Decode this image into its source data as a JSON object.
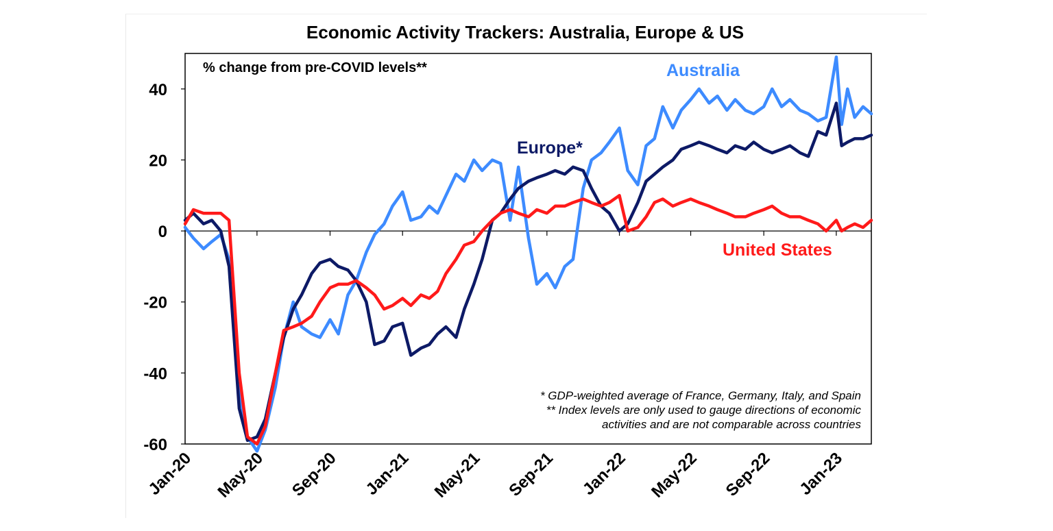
{
  "chart_data": {
    "type": "line",
    "title": "Economic Activity Trackers: Australia, Europe & US",
    "unit_label": "% change from pre-COVID levels**",
    "x_tick_labels": [
      "Jan-20",
      "May-20",
      "Sep-20",
      "Jan-21",
      "May-21",
      "Sep-21",
      "Jan-22",
      "May-22",
      "Sep-22",
      "Jan-23"
    ],
    "x_range": [
      "2020-01",
      "2023-03"
    ],
    "ylim": [
      -60,
      50
    ],
    "y_ticks": [
      -60,
      -40,
      -20,
      0,
      20,
      40
    ],
    "grid": false,
    "zero_line": true,
    "notes": [
      "* GDP-weighted average of France, Germany, Italy, and Spain",
      "** Index levels are only used to gauge directions of economic",
      "activities and are not comparable across countries"
    ],
    "series": [
      {
        "name": "Australia",
        "color": "#3d8bff",
        "points": [
          [
            "2020-01-01",
            1
          ],
          [
            "2020-01-15",
            -2
          ],
          [
            "2020-02-01",
            -5
          ],
          [
            "2020-02-15",
            -3
          ],
          [
            "2020-03-01",
            -1
          ],
          [
            "2020-03-15",
            -8
          ],
          [
            "2020-04-01",
            -45
          ],
          [
            "2020-04-15",
            -58
          ],
          [
            "2020-05-01",
            -62
          ],
          [
            "2020-05-15",
            -56
          ],
          [
            "2020-06-01",
            -44
          ],
          [
            "2020-06-15",
            -30
          ],
          [
            "2020-07-01",
            -20
          ],
          [
            "2020-07-15",
            -27
          ],
          [
            "2020-08-01",
            -29
          ],
          [
            "2020-08-15",
            -30
          ],
          [
            "2020-09-01",
            -25
          ],
          [
            "2020-09-15",
            -29
          ],
          [
            "2020-10-01",
            -18
          ],
          [
            "2020-10-15",
            -14
          ],
          [
            "2020-11-01",
            -6
          ],
          [
            "2020-11-15",
            -1
          ],
          [
            "2020-12-01",
            2
          ],
          [
            "2020-12-15",
            7
          ],
          [
            "2021-01-01",
            11
          ],
          [
            "2021-01-15",
            3
          ],
          [
            "2021-02-01",
            4
          ],
          [
            "2021-02-15",
            7
          ],
          [
            "2021-03-01",
            5
          ],
          [
            "2021-03-15",
            10
          ],
          [
            "2021-04-01",
            16
          ],
          [
            "2021-04-15",
            14
          ],
          [
            "2021-05-01",
            20
          ],
          [
            "2021-05-15",
            17
          ],
          [
            "2021-06-01",
            20
          ],
          [
            "2021-06-15",
            19
          ],
          [
            "2021-07-01",
            3
          ],
          [
            "2021-07-15",
            18
          ],
          [
            "2021-08-01",
            -2
          ],
          [
            "2021-08-15",
            -15
          ],
          [
            "2021-09-01",
            -12
          ],
          [
            "2021-09-15",
            -16
          ],
          [
            "2021-10-01",
            -10
          ],
          [
            "2021-10-15",
            -8
          ],
          [
            "2021-11-01",
            12
          ],
          [
            "2021-11-15",
            20
          ],
          [
            "2021-12-01",
            22
          ],
          [
            "2021-12-15",
            25
          ],
          [
            "2022-01-01",
            29
          ],
          [
            "2022-01-15",
            17
          ],
          [
            "2022-02-01",
            13
          ],
          [
            "2022-02-15",
            24
          ],
          [
            "2022-03-01",
            26
          ],
          [
            "2022-03-15",
            35
          ],
          [
            "2022-04-01",
            29
          ],
          [
            "2022-04-15",
            34
          ],
          [
            "2022-05-01",
            37
          ],
          [
            "2022-05-15",
            40
          ],
          [
            "2022-06-01",
            36
          ],
          [
            "2022-06-15",
            38
          ],
          [
            "2022-07-01",
            34
          ],
          [
            "2022-07-15",
            37
          ],
          [
            "2022-08-01",
            34
          ],
          [
            "2022-08-15",
            33
          ],
          [
            "2022-09-01",
            35
          ],
          [
            "2022-09-15",
            40
          ],
          [
            "2022-10-01",
            35
          ],
          [
            "2022-10-15",
            37
          ],
          [
            "2022-11-01",
            34
          ],
          [
            "2022-11-15",
            33
          ],
          [
            "2022-12-01",
            31
          ],
          [
            "2022-12-15",
            32
          ],
          [
            "2023-01-01",
            49
          ],
          [
            "2023-01-10",
            30
          ],
          [
            "2023-01-20",
            40
          ],
          [
            "2023-02-01",
            32
          ],
          [
            "2023-02-15",
            35
          ],
          [
            "2023-03-01",
            33
          ]
        ]
      },
      {
        "name": "Europe*",
        "color": "#0d1a66",
        "points": [
          [
            "2020-01-01",
            3
          ],
          [
            "2020-01-15",
            5
          ],
          [
            "2020-02-01",
            2
          ],
          [
            "2020-02-15",
            3
          ],
          [
            "2020-03-01",
            0
          ],
          [
            "2020-03-15",
            -10
          ],
          [
            "2020-04-01",
            -50
          ],
          [
            "2020-04-15",
            -59
          ],
          [
            "2020-05-01",
            -58
          ],
          [
            "2020-05-15",
            -53
          ],
          [
            "2020-06-01",
            -40
          ],
          [
            "2020-06-15",
            -30
          ],
          [
            "2020-07-01",
            -22
          ],
          [
            "2020-07-15",
            -18
          ],
          [
            "2020-08-01",
            -12
          ],
          [
            "2020-08-15",
            -9
          ],
          [
            "2020-09-01",
            -8
          ],
          [
            "2020-09-15",
            -10
          ],
          [
            "2020-10-01",
            -11
          ],
          [
            "2020-10-15",
            -14
          ],
          [
            "2020-11-01",
            -20
          ],
          [
            "2020-11-15",
            -32
          ],
          [
            "2020-12-01",
            -31
          ],
          [
            "2020-12-15",
            -27
          ],
          [
            "2021-01-01",
            -26
          ],
          [
            "2021-01-15",
            -35
          ],
          [
            "2021-02-01",
            -33
          ],
          [
            "2021-02-15",
            -32
          ],
          [
            "2021-03-01",
            -29
          ],
          [
            "2021-03-15",
            -27
          ],
          [
            "2021-04-01",
            -30
          ],
          [
            "2021-04-15",
            -22
          ],
          [
            "2021-05-01",
            -15
          ],
          [
            "2021-05-15",
            -8
          ],
          [
            "2021-06-01",
            3
          ],
          [
            "2021-06-15",
            5
          ],
          [
            "2021-07-01",
            9
          ],
          [
            "2021-07-15",
            12
          ],
          [
            "2021-08-01",
            14
          ],
          [
            "2021-08-15",
            15
          ],
          [
            "2021-09-01",
            16
          ],
          [
            "2021-09-15",
            17
          ],
          [
            "2021-10-01",
            16
          ],
          [
            "2021-10-15",
            18
          ],
          [
            "2021-11-01",
            17
          ],
          [
            "2021-11-15",
            12
          ],
          [
            "2021-12-01",
            7
          ],
          [
            "2021-12-15",
            5
          ],
          [
            "2022-01-01",
            0
          ],
          [
            "2022-01-15",
            2
          ],
          [
            "2022-02-01",
            8
          ],
          [
            "2022-02-15",
            14
          ],
          [
            "2022-03-01",
            16
          ],
          [
            "2022-03-15",
            18
          ],
          [
            "2022-04-01",
            20
          ],
          [
            "2022-04-15",
            23
          ],
          [
            "2022-05-01",
            24
          ],
          [
            "2022-05-15",
            25
          ],
          [
            "2022-06-01",
            24
          ],
          [
            "2022-06-15",
            23
          ],
          [
            "2022-07-01",
            22
          ],
          [
            "2022-07-15",
            24
          ],
          [
            "2022-08-01",
            23
          ],
          [
            "2022-08-15",
            25
          ],
          [
            "2022-09-01",
            23
          ],
          [
            "2022-09-15",
            22
          ],
          [
            "2022-10-01",
            23
          ],
          [
            "2022-10-15",
            24
          ],
          [
            "2022-11-01",
            22
          ],
          [
            "2022-11-15",
            21
          ],
          [
            "2022-12-01",
            28
          ],
          [
            "2022-12-15",
            27
          ],
          [
            "2023-01-01",
            36
          ],
          [
            "2023-01-10",
            24
          ],
          [
            "2023-01-20",
            25
          ],
          [
            "2023-02-01",
            26
          ],
          [
            "2023-02-15",
            26
          ],
          [
            "2023-03-01",
            27
          ]
        ]
      },
      {
        "name": "United States",
        "color": "#ff1a1a",
        "points": [
          [
            "2020-01-01",
            2
          ],
          [
            "2020-01-15",
            6
          ],
          [
            "2020-02-01",
            5
          ],
          [
            "2020-02-15",
            5
          ],
          [
            "2020-03-01",
            5
          ],
          [
            "2020-03-15",
            3
          ],
          [
            "2020-04-01",
            -40
          ],
          [
            "2020-04-15",
            -58
          ],
          [
            "2020-05-01",
            -60
          ],
          [
            "2020-05-15",
            -55
          ],
          [
            "2020-06-01",
            -40
          ],
          [
            "2020-06-15",
            -28
          ],
          [
            "2020-07-01",
            -27
          ],
          [
            "2020-07-15",
            -26
          ],
          [
            "2020-08-01",
            -24
          ],
          [
            "2020-08-15",
            -20
          ],
          [
            "2020-09-01",
            -16
          ],
          [
            "2020-09-15",
            -15
          ],
          [
            "2020-10-01",
            -15
          ],
          [
            "2020-10-15",
            -14
          ],
          [
            "2020-11-01",
            -16
          ],
          [
            "2020-11-15",
            -18
          ],
          [
            "2020-12-01",
            -22
          ],
          [
            "2020-12-15",
            -21
          ],
          [
            "2021-01-01",
            -19
          ],
          [
            "2021-01-15",
            -21
          ],
          [
            "2021-02-01",
            -18
          ],
          [
            "2021-02-15",
            -19
          ],
          [
            "2021-03-01",
            -17
          ],
          [
            "2021-03-15",
            -12
          ],
          [
            "2021-04-01",
            -8
          ],
          [
            "2021-04-15",
            -4
          ],
          [
            "2021-05-01",
            -3
          ],
          [
            "2021-05-15",
            0
          ],
          [
            "2021-06-01",
            3
          ],
          [
            "2021-06-15",
            5
          ],
          [
            "2021-07-01",
            6
          ],
          [
            "2021-07-15",
            5
          ],
          [
            "2021-08-01",
            4
          ],
          [
            "2021-08-15",
            6
          ],
          [
            "2021-09-01",
            5
          ],
          [
            "2021-09-15",
            7
          ],
          [
            "2021-10-01",
            7
          ],
          [
            "2021-10-15",
            8
          ],
          [
            "2021-11-01",
            9
          ],
          [
            "2021-11-15",
            8
          ],
          [
            "2021-12-01",
            7
          ],
          [
            "2021-12-15",
            8
          ],
          [
            "2022-01-01",
            10
          ],
          [
            "2022-01-15",
            0
          ],
          [
            "2022-02-01",
            1
          ],
          [
            "2022-02-15",
            4
          ],
          [
            "2022-03-01",
            8
          ],
          [
            "2022-03-15",
            9
          ],
          [
            "2022-04-01",
            7
          ],
          [
            "2022-04-15",
            8
          ],
          [
            "2022-05-01",
            9
          ],
          [
            "2022-05-15",
            8
          ],
          [
            "2022-06-01",
            7
          ],
          [
            "2022-06-15",
            6
          ],
          [
            "2022-07-01",
            5
          ],
          [
            "2022-07-15",
            4
          ],
          [
            "2022-08-01",
            4
          ],
          [
            "2022-08-15",
            5
          ],
          [
            "2022-09-01",
            6
          ],
          [
            "2022-09-15",
            7
          ],
          [
            "2022-10-01",
            5
          ],
          [
            "2022-10-15",
            4
          ],
          [
            "2022-11-01",
            4
          ],
          [
            "2022-11-15",
            3
          ],
          [
            "2022-12-01",
            2
          ],
          [
            "2022-12-15",
            0
          ],
          [
            "2023-01-01",
            3
          ],
          [
            "2023-01-10",
            0
          ],
          [
            "2023-01-20",
            1
          ],
          [
            "2023-02-01",
            2
          ],
          [
            "2023-02-15",
            1
          ],
          [
            "2023-03-01",
            3
          ]
        ]
      }
    ]
  }
}
